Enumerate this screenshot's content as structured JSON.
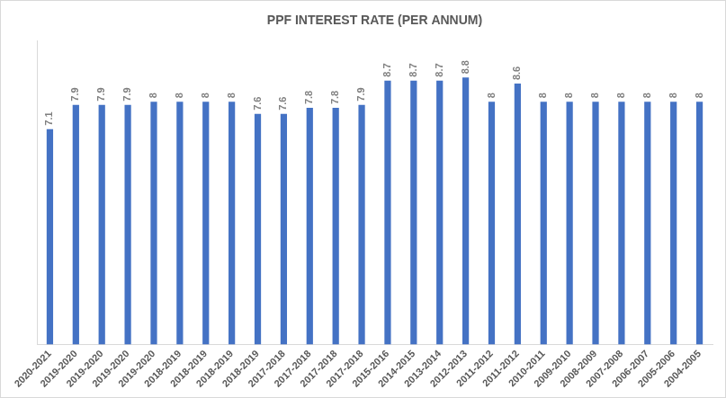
{
  "chart_data": {
    "type": "bar",
    "title": "PPF INTEREST RATE (PER ANNUM)",
    "categories": [
      "2020-2021",
      "2019-2020",
      "2019-2020",
      "2019-2020",
      "2019-2020",
      "2018-2019",
      "2018-2019",
      "2018-2019",
      "2018-2019",
      "2017-2018",
      "2017-2018",
      "2017-2018",
      "2017-2018",
      "2015-2016",
      "2014-2015",
      "2013-2014",
      "2012-2013",
      "2011-2012",
      "2011-2012",
      "2010-2011",
      "2009-2010",
      "2008-2009",
      "2007-2008",
      "2006-2007",
      "2005-2006",
      "2004-2005"
    ],
    "values": [
      7.1,
      7.9,
      7.9,
      7.9,
      8,
      8,
      8,
      8,
      7.6,
      7.6,
      7.8,
      7.8,
      7.9,
      8.7,
      8.7,
      8.7,
      8.8,
      8,
      8.6,
      8,
      8,
      8,
      8,
      8,
      8,
      8
    ],
    "color": "#4472c4",
    "ylim": [
      0,
      10
    ],
    "grid": false,
    "data_labels": true,
    "tick_labels": "x"
  }
}
